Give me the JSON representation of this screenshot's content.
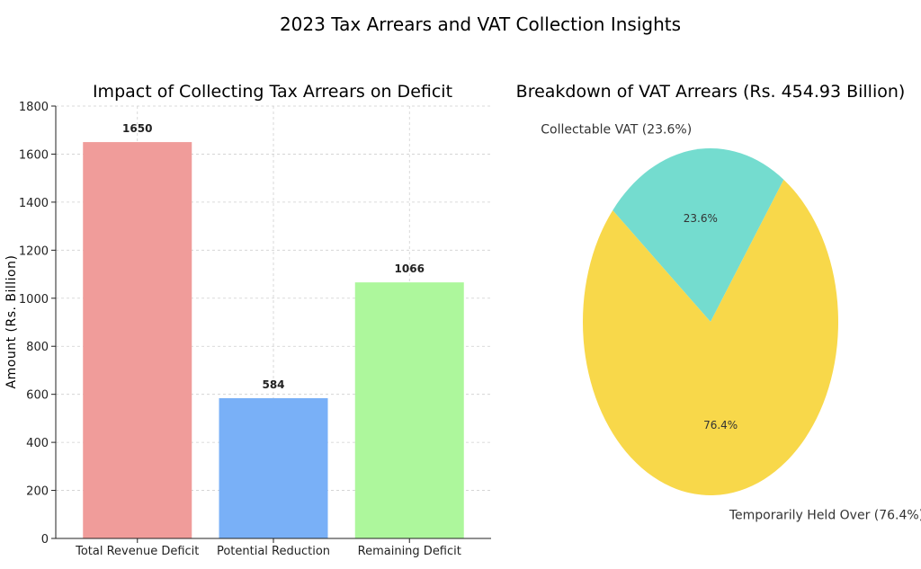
{
  "figure": {
    "title": "2023 Tax Arrears and VAT Collection Insights"
  },
  "chart_data": [
    {
      "type": "bar",
      "title": "Impact of Collecting Tax Arrears on Deficit",
      "xlabel": "",
      "ylabel": "Amount (Rs. Billion)",
      "categories": [
        "Total Revenue Deficit",
        "Potential Reduction",
        "Remaining Deficit"
      ],
      "values": [
        1650,
        584,
        1066
      ],
      "value_labels": [
        "1650",
        "584",
        "1066"
      ],
      "colors": [
        "#f09c9a",
        "#79b0f7",
        "#adf79c"
      ],
      "ylim": [
        0,
        1800
      ],
      "yticks": [
        0,
        200,
        400,
        600,
        800,
        1000,
        1200,
        1400,
        1600,
        1800
      ],
      "grid": true
    },
    {
      "type": "pie",
      "title": "Breakdown of VAT Arrears (Rs. 454.93 Billion)",
      "slices": [
        {
          "label": "Collectable VAT (23.6%)",
          "value": 23.6,
          "pct_label": "23.6%",
          "color": "#74dccf"
        },
        {
          "label": "Temporarily Held Over (76.4%)",
          "value": 76.4,
          "pct_label": "76.4%",
          "color": "#f8d84a"
        }
      ],
      "start_angle_deg": 140
    }
  ]
}
